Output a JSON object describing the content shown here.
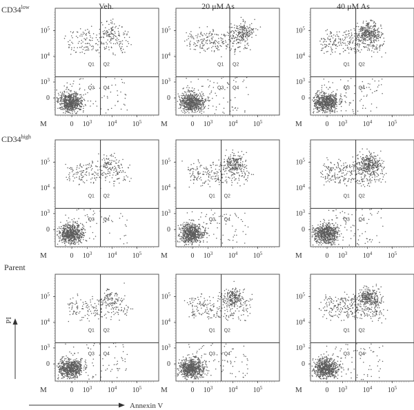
{
  "columns": [
    "Veh.",
    "20 μM As",
    "40 μM As"
  ],
  "rows": [
    {
      "label_main": "CD34",
      "label_sup": "low"
    },
    {
      "label_main": "CD34",
      "label_sup": "high"
    },
    {
      "label_main": "Parent",
      "label_sup": ""
    }
  ],
  "axes": {
    "x_title": "Annexin V",
    "y_title": "PI",
    "x_tick_labels": [
      "0",
      "10^3",
      "10^4",
      "10^5"
    ],
    "y_tick_labels": [
      "0",
      "10^3",
      "10^4",
      "10^5"
    ],
    "corner_label": "M",
    "scale": "log-like (biexponential)"
  },
  "quadrant_labels": [
    "Q1",
    "Q2",
    "Q3",
    "Q4"
  ],
  "chart_data": {
    "type": "scatter",
    "title": "",
    "xlabel": "Annexin V",
    "ylabel": "PI",
    "x_ticks": [
      "0",
      "10^3",
      "10^4",
      "10^5"
    ],
    "y_ticks": [
      "0",
      "10^3",
      "10^4",
      "10^5"
    ],
    "quadrants": [
      "Q1",
      "Q2",
      "Q3",
      "Q4"
    ],
    "panels": [
      {
        "row": "CD34low",
        "column": "Veh.",
        "gate_x": 3400,
        "gate_y": 1600
      },
      {
        "row": "CD34low",
        "column": "20 μM As",
        "gate_x": 7500,
        "gate_y": 1600
      },
      {
        "row": "CD34low",
        "column": "40 μM As",
        "gate_x": 3400,
        "gate_y": 1600
      },
      {
        "row": "CD34high",
        "column": "Veh.",
        "gate_x": 3400,
        "gate_y": 1600
      },
      {
        "row": "CD34high",
        "column": "20 μM As",
        "gate_x": 3400,
        "gate_y": 1600
      },
      {
        "row": "CD34high",
        "column": "40 μM As",
        "gate_x": 3400,
        "gate_y": 1600
      },
      {
        "row": "Parent",
        "column": "Veh.",
        "gate_x": 3400,
        "gate_y": 1600
      },
      {
        "row": "Parent",
        "column": "20 μM As",
        "gate_x": 3400,
        "gate_y": 1600
      },
      {
        "row": "Parent",
        "column": "40 μM As",
        "gate_x": 3400,
        "gate_y": 1600
      }
    ],
    "grid": false,
    "legend": "none"
  },
  "colors": {
    "dots": "#5c5c5c",
    "frame": "#555555",
    "text": "#333333"
  }
}
